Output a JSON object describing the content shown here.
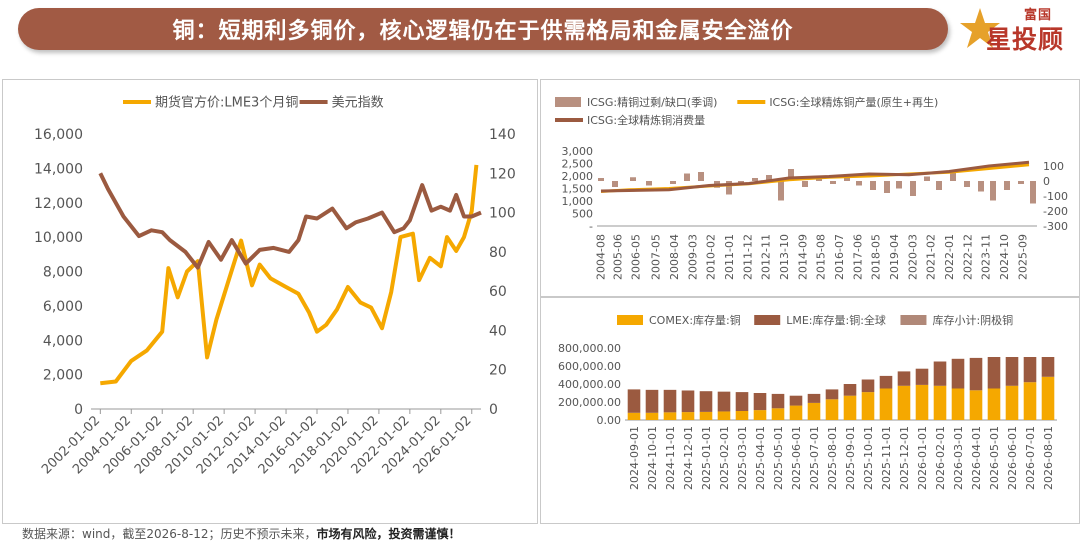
{
  "header": {
    "title": "铜：短期利多铜价，核心逻辑仍在于供需格局和金属安全溢价",
    "logo_top": "富国",
    "logo_main": "星投顾",
    "banner_color": "#a15a44",
    "logo_color": "#b8372a"
  },
  "footer": {
    "source": "数据来源：wind，截至2026-8-12；历史不预示未来，",
    "warning": "市场有风险，投资需谨慎！"
  },
  "chart_data": [
    {
      "type": "line",
      "legend_placement": "top",
      "x_ticks": [
        "2002-01-02",
        "2004-01-02",
        "2006-01-02",
        "2008-01-02",
        "2010-01-02",
        "2012-01-02",
        "2014-01-02",
        "2016-01-02",
        "2018-01-02",
        "2020-01-02",
        "2022-01-02",
        "2024-01-02",
        "2026-01-02"
      ],
      "y_left": {
        "min": 0,
        "max": 16000,
        "ticks": [
          "0",
          "2,000",
          "4,000",
          "6,000",
          "8,000",
          "10,000",
          "12,000",
          "14,000",
          "16,000"
        ]
      },
      "y_right": {
        "min": 0,
        "max": 140,
        "ticks": [
          "0",
          "20",
          "40",
          "60",
          "80",
          "100",
          "120",
          "140"
        ]
      },
      "series": [
        {
          "name": "期货官方价:LME3个月铜",
          "axis": "left",
          "color": "#f5a800",
          "points": [
            [
              2002.0,
              1500
            ],
            [
              2003.0,
              1600
            ],
            [
              2004.0,
              2800
            ],
            [
              2005.0,
              3400
            ],
            [
              2006.0,
              4500
            ],
            [
              2006.4,
              8200
            ],
            [
              2007.0,
              6500
            ],
            [
              2007.6,
              8000
            ],
            [
              2008.3,
              8600
            ],
            [
              2008.9,
              3000
            ],
            [
              2009.5,
              5200
            ],
            [
              2010.3,
              7500
            ],
            [
              2011.1,
              9800
            ],
            [
              2011.8,
              7200
            ],
            [
              2012.3,
              8400
            ],
            [
              2013.0,
              7600
            ],
            [
              2014.0,
              7100
            ],
            [
              2014.8,
              6700
            ],
            [
              2015.5,
              5600
            ],
            [
              2016.0,
              4500
            ],
            [
              2016.6,
              4900
            ],
            [
              2017.3,
              5800
            ],
            [
              2018.0,
              7100
            ],
            [
              2018.8,
              6200
            ],
            [
              2019.5,
              5900
            ],
            [
              2020.2,
              4700
            ],
            [
              2020.8,
              6800
            ],
            [
              2021.4,
              10000
            ],
            [
              2022.2,
              10200
            ],
            [
              2022.6,
              7500
            ],
            [
              2023.3,
              8800
            ],
            [
              2024.0,
              8300
            ],
            [
              2024.4,
              10000
            ],
            [
              2025.0,
              9200
            ],
            [
              2025.5,
              10000
            ],
            [
              2026.0,
              11500
            ],
            [
              2026.3,
              14200
            ]
          ]
        },
        {
          "name": "美元指数",
          "axis": "right",
          "color": "#9b5a40",
          "points": [
            [
              2002.0,
              120
            ],
            [
              2002.5,
              112
            ],
            [
              2003.5,
              98
            ],
            [
              2004.5,
              88
            ],
            [
              2005.3,
              91
            ],
            [
              2006.0,
              90
            ],
            [
              2006.5,
              86
            ],
            [
              2007.5,
              80
            ],
            [
              2008.3,
              72
            ],
            [
              2009.0,
              85
            ],
            [
              2009.8,
              76
            ],
            [
              2010.5,
              86
            ],
            [
              2011.4,
              74
            ],
            [
              2012.3,
              81
            ],
            [
              2013.2,
              82
            ],
            [
              2014.2,
              80
            ],
            [
              2014.8,
              86
            ],
            [
              2015.3,
              98
            ],
            [
              2016.0,
              97
            ],
            [
              2017.0,
              102
            ],
            [
              2017.9,
              92
            ],
            [
              2018.5,
              95
            ],
            [
              2019.3,
              97
            ],
            [
              2020.2,
              100
            ],
            [
              2021.0,
              90
            ],
            [
              2021.6,
              92
            ],
            [
              2022.0,
              96
            ],
            [
              2022.8,
              114
            ],
            [
              2023.4,
              101
            ],
            [
              2024.0,
              103
            ],
            [
              2024.6,
              101
            ],
            [
              2025.0,
              109
            ],
            [
              2025.5,
              98
            ],
            [
              2026.0,
              98
            ],
            [
              2026.6,
              100
            ]
          ]
        }
      ]
    },
    {
      "type": "bar-line",
      "legend_placement": "top",
      "x_ticks": [
        "2004-08",
        "2005-06",
        "2006-05",
        "2007-05",
        "2008-04",
        "2009-03",
        "2010-02",
        "2011-01",
        "2011-12",
        "2012-11",
        "2013-10",
        "2014-09",
        "2015-08",
        "2016-07",
        "2017-06",
        "2018-05",
        "2019-04",
        "2020-03",
        "2021-02",
        "2022-01",
        "2022-12",
        "2023-11",
        "2024-10",
        "2025-09"
      ],
      "y_left": {
        "min": 0,
        "max": 3000,
        "ticks": [
          "-",
          "500",
          "1,000",
          "1,500",
          "2,000",
          "2,500",
          "3,000"
        ]
      },
      "y_right": {
        "min": -300,
        "max": 200,
        "ticks": [
          "-300",
          "-200",
          "-100",
          "0",
          "100"
        ]
      },
      "series": [
        {
          "name": "ICSG:精铜过剩/缺口(季调)",
          "type": "bar",
          "axis": "right",
          "color": "#b89080",
          "points": [
            [
              2004.6,
              20
            ],
            [
              2005.3,
              -40
            ],
            [
              2006.2,
              25
            ],
            [
              2007.0,
              -30
            ],
            [
              2008.2,
              -20
            ],
            [
              2008.9,
              50
            ],
            [
              2009.6,
              60
            ],
            [
              2010.4,
              -45
            ],
            [
              2011.0,
              -90
            ],
            [
              2011.6,
              -30
            ],
            [
              2012.3,
              20
            ],
            [
              2013.0,
              40
            ],
            [
              2013.6,
              -130
            ],
            [
              2014.1,
              80
            ],
            [
              2014.8,
              -40
            ],
            [
              2015.5,
              30
            ],
            [
              2016.2,
              -20
            ],
            [
              2016.9,
              40
            ],
            [
              2017.5,
              -30
            ],
            [
              2018.2,
              -60
            ],
            [
              2018.9,
              -80
            ],
            [
              2019.5,
              -50
            ],
            [
              2020.2,
              -100
            ],
            [
              2020.9,
              30
            ],
            [
              2021.5,
              -60
            ],
            [
              2022.2,
              60
            ],
            [
              2022.9,
              -40
            ],
            [
              2023.6,
              -70
            ],
            [
              2024.2,
              -130
            ],
            [
              2024.9,
              -60
            ],
            [
              2025.6,
              -20
            ],
            [
              2026.2,
              -150
            ]
          ]
        },
        {
          "name": "ICSG:全球精炼铜产量(原生+再生)",
          "type": "line",
          "axis": "left",
          "color": "#f5a800",
          "points": [
            [
              2004.6,
              1380
            ],
            [
              2006.0,
              1450
            ],
            [
              2008.0,
              1500
            ],
            [
              2010.0,
              1600
            ],
            [
              2012.0,
              1690
            ],
            [
              2014.0,
              1850
            ],
            [
              2016.0,
              1950
            ],
            [
              2018.0,
              2000
            ],
            [
              2020.0,
              2080
            ],
            [
              2022.0,
              2150
            ],
            [
              2024.0,
              2300
            ],
            [
              2026.0,
              2450
            ]
          ]
        },
        {
          "name": "ICSG:全球精炼铜消费量",
          "type": "line",
          "axis": "left",
          "color": "#9b5a40",
          "points": [
            [
              2004.6,
              1400
            ],
            [
              2006.0,
              1420
            ],
            [
              2008.0,
              1450
            ],
            [
              2010.0,
              1620
            ],
            [
              2012.0,
              1700
            ],
            [
              2014.0,
              1920
            ],
            [
              2016.0,
              1980
            ],
            [
              2018.0,
              2080
            ],
            [
              2020.0,
              2050
            ],
            [
              2022.0,
              2180
            ],
            [
              2024.0,
              2400
            ],
            [
              2026.0,
              2550
            ]
          ]
        }
      ]
    },
    {
      "type": "stacked-bar",
      "legend_placement": "top",
      "y": {
        "min": 0,
        "max": 800000,
        "ticks": [
          "0.00",
          "200,000.00",
          "400,000.00",
          "600,000.00",
          "800,000.00"
        ]
      },
      "categories": [
        "2024-09-01",
        "2024-10-01",
        "2024-11-01",
        "2024-12-01",
        "2025-01-01",
        "2025-02-01",
        "2025-03-01",
        "2025-04-01",
        "2025-05-01",
        "2025-06-01",
        "2025-07-01",
        "2025-08-01",
        "2025-09-01",
        "2025-10-01",
        "2025-11-01",
        "2025-12-01",
        "2026-01-01",
        "2026-02-01",
        "2026-03-01",
        "2026-04-01",
        "2026-05-01",
        "2026-06-01",
        "2026-07-01",
        "2026-08-01"
      ],
      "series": [
        {
          "name": "COMEX:库存量:铜",
          "color": "#f5a800",
          "values": [
            80000,
            80000,
            85000,
            88000,
            90000,
            95000,
            100000,
            110000,
            130000,
            160000,
            190000,
            230000,
            270000,
            310000,
            350000,
            380000,
            390000,
            380000,
            350000,
            330000,
            350000,
            380000,
            420000,
            480000
          ]
        },
        {
          "name": "LME:库存量:铜:全球",
          "color": "#9b5a40",
          "values": [
            260000,
            255000,
            250000,
            240000,
            230000,
            220000,
            210000,
            190000,
            160000,
            110000,
            100000,
            110000,
            130000,
            140000,
            140000,
            160000,
            180000,
            270000,
            330000,
            360000,
            350000,
            320000,
            280000,
            220000
          ]
        },
        {
          "name": "库存小计:阴极铜",
          "color": "#b08878",
          "values": [
            0,
            0,
            0,
            0,
            0,
            0,
            0,
            0,
            0,
            0,
            0,
            0,
            0,
            0,
            0,
            0,
            0,
            0,
            0,
            0,
            0,
            0,
            0,
            0
          ]
        }
      ]
    }
  ]
}
